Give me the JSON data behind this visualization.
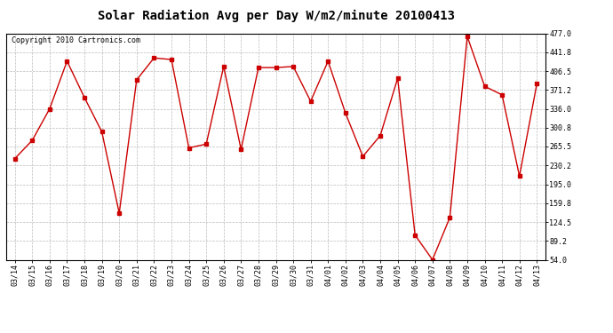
{
  "title": "Solar Radiation Avg per Day W/m2/minute 20100413",
  "copyright": "Copyright 2010 Cartronics.com",
  "dates": [
    "03/14",
    "03/15",
    "03/16",
    "03/17",
    "03/18",
    "03/19",
    "03/20",
    "03/21",
    "03/22",
    "03/23",
    "03/24",
    "03/25",
    "03/26",
    "03/27",
    "03/28",
    "03/29",
    "03/30",
    "03/31",
    "04/01",
    "04/02",
    "04/03",
    "04/04",
    "04/05",
    "04/06",
    "04/07",
    "04/08",
    "04/09",
    "04/10",
    "04/11",
    "04/12",
    "04/13"
  ],
  "values": [
    243,
    277,
    336,
    425,
    357,
    293,
    141,
    390,
    431,
    428,
    263,
    270,
    415,
    260,
    413,
    413,
    415,
    350,
    425,
    328,
    247,
    286,
    393,
    100,
    54,
    133,
    471,
    378,
    362,
    210,
    383
  ],
  "yticks": [
    54.0,
    89.2,
    124.5,
    159.8,
    195.0,
    230.2,
    265.5,
    300.8,
    336.0,
    371.2,
    406.5,
    441.8,
    477.0
  ],
  "ytick_labels": [
    "54.0",
    "89.2",
    "124.5",
    "159.8",
    "195.0",
    "230.2",
    "265.5",
    "300.8",
    "336.0",
    "371.2",
    "406.5",
    "441.8",
    "477.0"
  ],
  "line_color": "#cc0000",
  "marker": "s",
  "marker_size": 2.5,
  "bg_color": "#ffffff",
  "grid_color": "#bbbbbb",
  "title_fontsize": 10,
  "copyright_fontsize": 6,
  "tick_fontsize": 6,
  "ylim": [
    54.0,
    477.0
  ]
}
